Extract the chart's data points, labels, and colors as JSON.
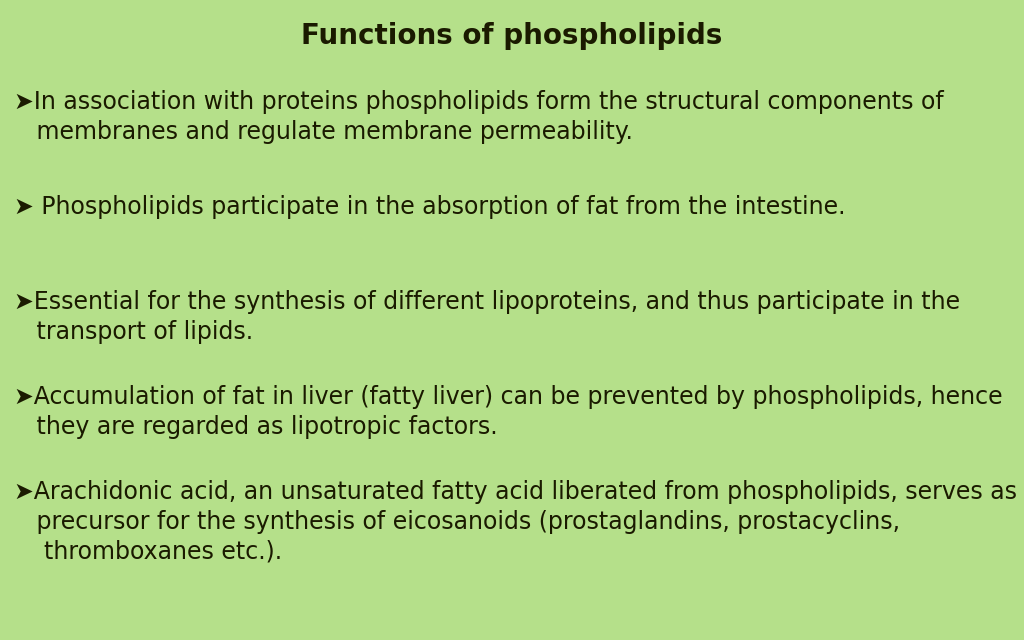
{
  "title": "Functions of phospholipids",
  "background_color": "#b5e08a",
  "title_fontsize": 20,
  "title_fontweight": "bold",
  "text_color": "#1a1a00",
  "body_fontsize": 17,
  "bullets": [
    {
      "lines": [
        "➤In association with proteins phospholipids form the structural components of",
        "   membranes and regulate membrane permeability."
      ]
    },
    {
      "lines": [
        "➤ Phospholipids participate in the absorption of fat from the intestine."
      ]
    },
    {
      "lines": [
        "➤Essential for the synthesis of different lipoproteins, and thus participate in the",
        "   transport of lipids."
      ]
    },
    {
      "lines": [
        "➤Accumulation of fat in liver (fatty liver) can be prevented by phospholipids, hence",
        "   they are regarded as lipotropic factors."
      ]
    },
    {
      "lines": [
        "➤Arachidonic acid, an unsaturated fatty acid liberated from phospholipids, serves as a",
        "   precursor for the synthesis of eicosanoids (prostaglandins, prostacyclins,",
        "    thromboxanes etc.)."
      ]
    }
  ]
}
